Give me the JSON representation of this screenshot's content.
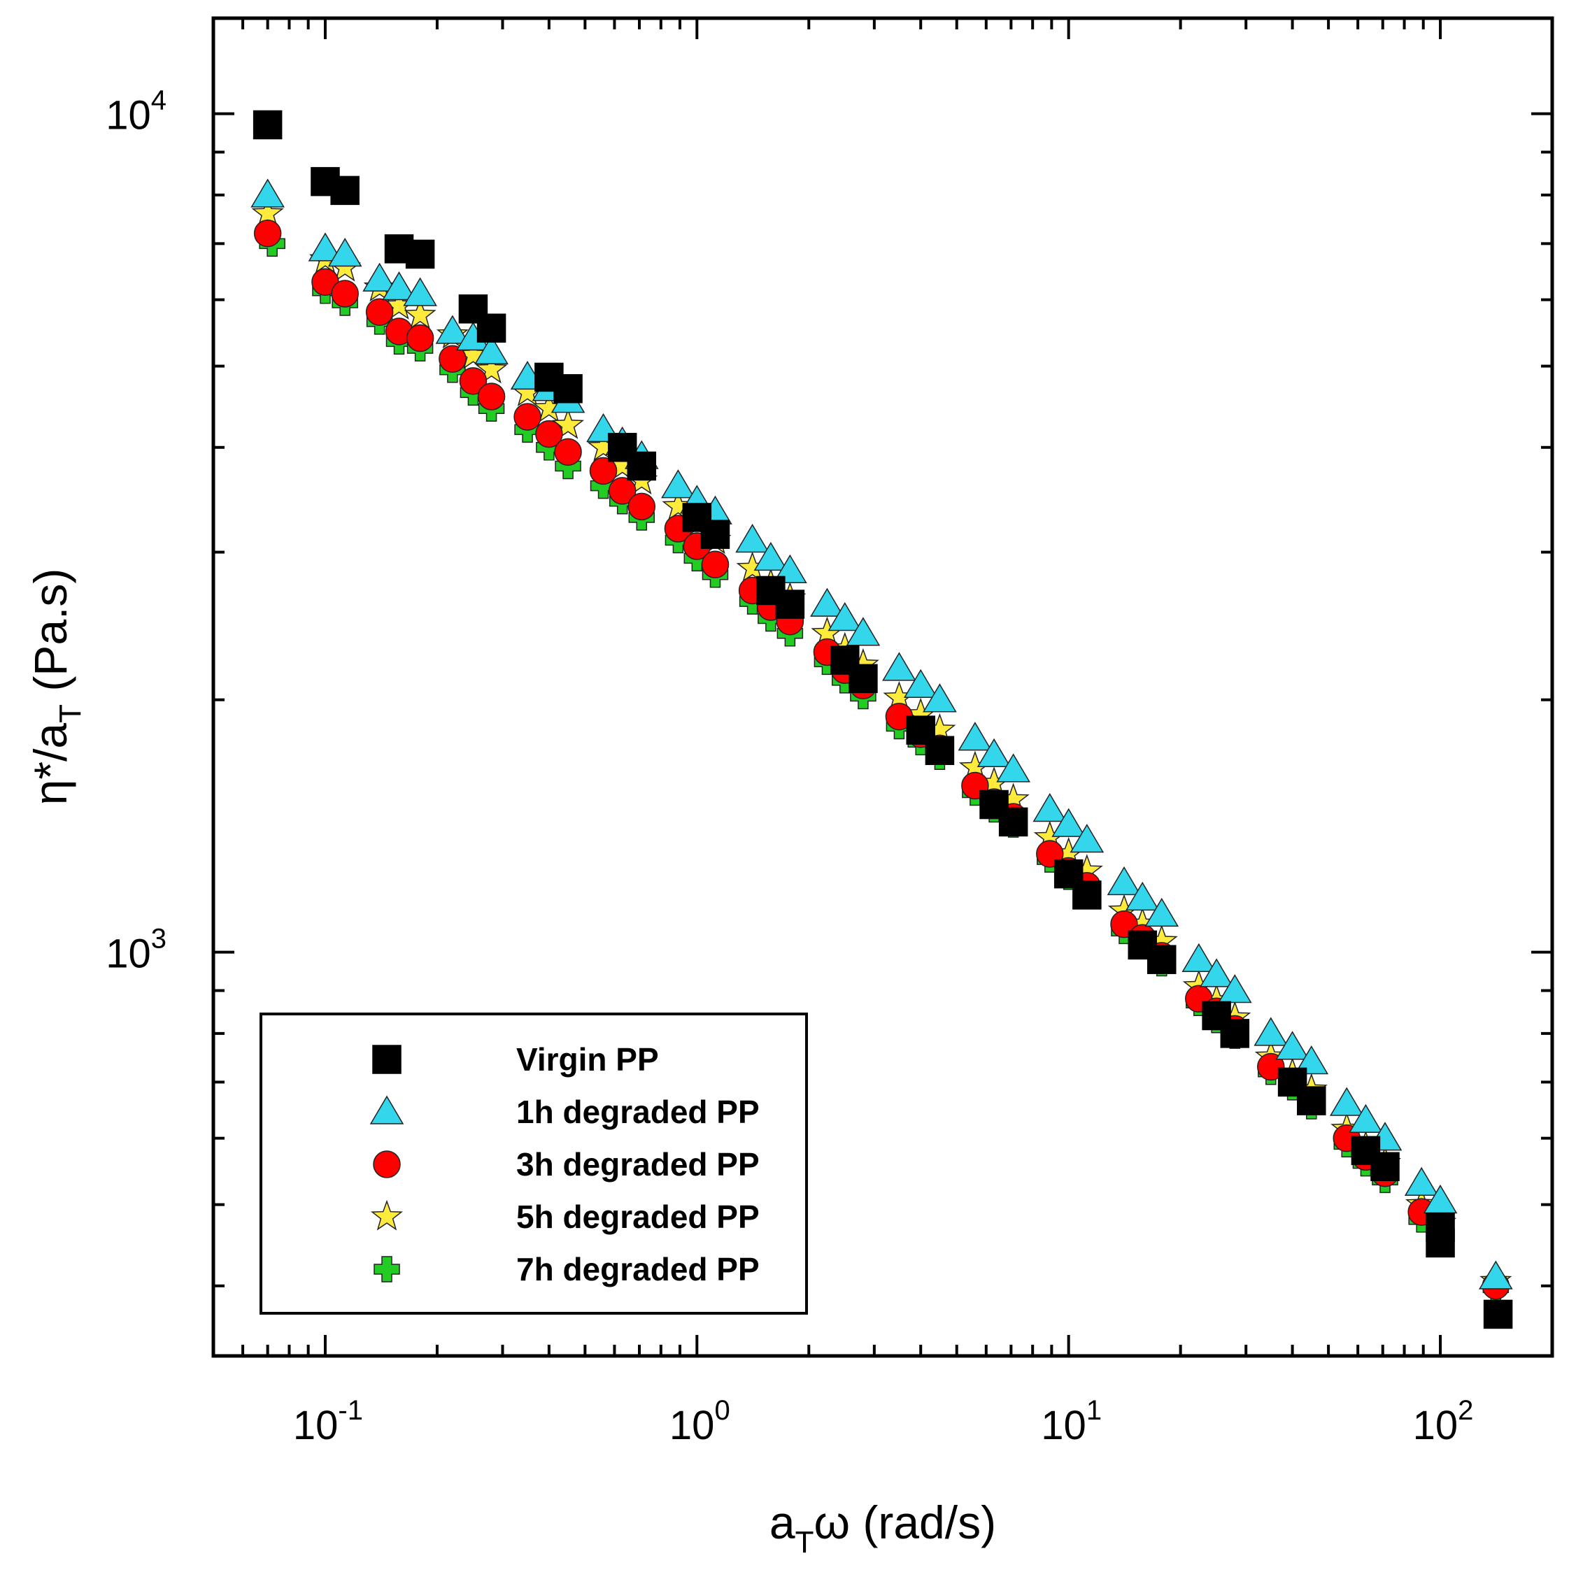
{
  "chart_data": {
    "type": "scatter",
    "title": "",
    "xscale": "log",
    "yscale": "log",
    "xlim": [
      0.05,
      200
    ],
    "ylim": [
      330,
      13000
    ],
    "x_ticks": [
      {
        "value": 0.1,
        "base": "10",
        "exp": "-1"
      },
      {
        "value": 1,
        "base": "10",
        "exp": "0"
      },
      {
        "value": 10,
        "base": "10",
        "exp": "1"
      },
      {
        "value": 100,
        "base": "10",
        "exp": "2"
      }
    ],
    "y_ticks": [
      {
        "value": 1000,
        "base": "10",
        "exp": "3"
      },
      {
        "value": 10000,
        "base": "10",
        "exp": "4"
      }
    ],
    "xlabel": {
      "pre": "a",
      "sub": "T",
      "post": "ω  (rad/s)"
    },
    "ylabel": {
      "pre": "η*/a",
      "sub": "T",
      "post": " (Pa.s)"
    },
    "legend_position": "bottom-left",
    "series": [
      {
        "name": "Virgin PP",
        "marker": "square",
        "color": "#000000",
        "x": [
          0.07,
          0.1,
          0.113,
          0.158,
          0.18,
          0.25,
          0.28,
          0.4,
          0.45,
          0.63,
          0.71,
          1.0,
          1.12,
          1.58,
          1.78,
          2.5,
          2.8,
          4.0,
          4.5,
          6.3,
          7.1,
          10.0,
          11.2,
          15.8,
          17.8,
          25.0,
          28.0,
          40.0,
          45.0,
          63.0,
          71.0,
          100.0,
          100.0,
          143.0
        ],
        "y": [
          9700,
          8300,
          8100,
          6900,
          6800,
          5850,
          5550,
          4850,
          4700,
          4000,
          3800,
          3300,
          3150,
          2700,
          2600,
          2230,
          2120,
          1840,
          1740,
          1500,
          1430,
          1240,
          1170,
          1020,
          980,
          840,
          800,
          700,
          665,
          580,
          555,
          470,
          450,
          370
        ]
      },
      {
        "name": "1h degraded PP",
        "marker": "triangle",
        "color": "#33d6ea",
        "x": [
          0.07,
          0.1,
          0.113,
          0.14,
          0.158,
          0.18,
          0.22,
          0.25,
          0.28,
          0.35,
          0.4,
          0.45,
          0.56,
          0.63,
          0.71,
          0.89,
          1.0,
          1.12,
          1.41,
          1.58,
          1.78,
          2.24,
          2.5,
          2.8,
          3.5,
          4.0,
          4.5,
          5.6,
          6.3,
          7.1,
          8.9,
          10.0,
          11.2,
          14.1,
          15.8,
          17.8,
          22.4,
          25.0,
          28.0,
          35.0,
          40.0,
          45.0,
          56.0,
          63.0,
          71.0,
          89.0,
          100.0,
          141.0
        ],
        "y": [
          8000,
          6900,
          6800,
          6350,
          6200,
          6100,
          5500,
          5400,
          5200,
          4850,
          4700,
          4550,
          4200,
          4050,
          3900,
          3600,
          3450,
          3350,
          3100,
          2950,
          2850,
          2600,
          2500,
          2400,
          2180,
          2080,
          2000,
          1800,
          1720,
          1650,
          1480,
          1420,
          1360,
          1210,
          1160,
          1110,
          980,
          940,
          900,
          800,
          770,
          740,
          660,
          630,
          600,
          530,
          505,
          410
        ]
      },
      {
        "name": "3h degraded PP",
        "marker": "circle",
        "color": "#ff0000",
        "x": [
          0.07,
          0.1,
          0.113,
          0.14,
          0.158,
          0.18,
          0.22,
          0.25,
          0.28,
          0.35,
          0.4,
          0.45,
          0.56,
          0.63,
          0.71,
          0.89,
          1.0,
          1.12,
          1.41,
          1.58,
          1.78,
          2.24,
          2.5,
          2.8,
          3.5,
          4.0,
          4.5,
          5.6,
          6.3,
          7.1,
          8.9,
          10.0,
          11.2,
          14.1,
          15.8,
          17.8,
          22.4,
          25.0,
          28.0,
          35.0,
          40.0,
          45.0,
          56.0,
          63.0,
          71.0,
          89.0,
          100.0,
          141.0
        ],
        "y": [
          7200,
          6300,
          6100,
          5800,
          5500,
          5400,
          5100,
          4800,
          4600,
          4350,
          4150,
          3950,
          3750,
          3550,
          3400,
          3200,
          3050,
          2900,
          2700,
          2580,
          2480,
          2280,
          2170,
          2080,
          1910,
          1820,
          1750,
          1580,
          1510,
          1450,
          1310,
          1250,
          1200,
          1080,
          1040,
          990,
          880,
          850,
          810,
          730,
          700,
          665,
          600,
          570,
          545,
          490,
          465,
          400
        ]
      },
      {
        "name": "5h degraded PP",
        "marker": "star",
        "color": "#ffeb3b",
        "x": [
          0.07,
          0.1,
          0.113,
          0.14,
          0.158,
          0.18,
          0.22,
          0.25,
          0.28,
          0.35,
          0.4,
          0.45,
          0.56,
          0.63,
          0.71,
          0.89,
          1.0,
          1.12,
          1.41,
          1.58,
          1.78,
          2.24,
          2.5,
          2.8,
          3.5,
          4.0,
          4.5,
          5.6,
          6.3,
          7.1,
          8.9,
          10.0,
          11.2,
          14.1,
          15.8,
          17.8,
          22.4,
          25.0,
          28.0,
          35.0,
          40.0,
          45.0,
          56.0,
          63.0,
          71.0,
          89.0,
          100.0,
          141.0
        ],
        "y": [
          7600,
          6700,
          6550,
          6200,
          5900,
          5750,
          5450,
          5150,
          4950,
          4650,
          4450,
          4250,
          4000,
          3800,
          3650,
          3400,
          3250,
          3100,
          2870,
          2740,
          2640,
          2400,
          2300,
          2200,
          2010,
          1920,
          1840,
          1660,
          1590,
          1520,
          1370,
          1310,
          1250,
          1120,
          1080,
          1030,
          910,
          875,
          835,
          750,
          715,
          685,
          615,
          585,
          560,
          500,
          475,
          405
        ]
      },
      {
        "name": "7h degraded PP",
        "marker": "plus",
        "color": "#22cc22",
        "x": [
          0.072,
          0.1,
          0.113,
          0.14,
          0.158,
          0.18,
          0.22,
          0.25,
          0.28,
          0.35,
          0.4,
          0.45,
          0.56,
          0.63,
          0.71,
          0.89,
          1.0,
          1.12,
          1.41,
          1.58,
          1.78,
          2.24,
          2.5,
          2.8,
          3.5,
          4.0,
          4.5,
          5.6,
          6.3,
          7.1,
          8.9,
          10.0,
          11.2,
          14.1,
          15.8,
          17.8,
          22.4,
          25.0,
          28.0,
          35.0,
          40.0,
          45.0,
          56.0,
          63.0,
          71.0,
          89.0,
          100.0,
          141.0
        ],
        "y": [
          7000,
          6150,
          5950,
          5650,
          5350,
          5250,
          4950,
          4650,
          4450,
          4200,
          4000,
          3800,
          3600,
          3450,
          3300,
          3100,
          2950,
          2820,
          2620,
          2500,
          2400,
          2220,
          2110,
          2020,
          1860,
          1780,
          1710,
          1550,
          1480,
          1420,
          1290,
          1230,
          1170,
          1060,
          1020,
          970,
          870,
          830,
          795,
          720,
          690,
          655,
          590,
          560,
          535,
          480,
          458,
          398
        ]
      }
    ]
  }
}
